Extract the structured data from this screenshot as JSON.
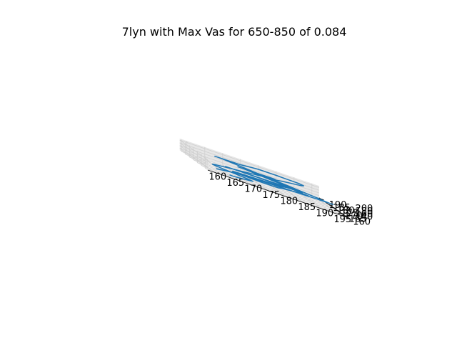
{
  "chart_data": {
    "type": "line",
    "projection": "3d",
    "title": "7lyn with Max Vas for 650-850 of 0.084",
    "xlabel": "",
    "ylabel": "",
    "zlabel": "",
    "xlim": [
      158,
      197
    ],
    "ylim": [
      157,
      192
    ],
    "zlim": [
      125,
      212
    ],
    "x_ticks": [
      160,
      165,
      170,
      175,
      180,
      185,
      190,
      195
    ],
    "y_ticks": [
      160,
      165,
      170,
      175,
      180,
      185,
      190
    ],
    "z_ticks": [
      140,
      160,
      180,
      200
    ],
    "grid": true,
    "series": [
      {
        "color": "#1f77b4",
        "x": [
          161,
          163,
          165,
          167,
          169,
          171,
          172,
          174,
          176,
          177,
          179,
          181,
          182,
          184,
          186,
          188,
          189,
          190,
          191,
          189,
          187,
          185,
          183,
          182,
          183,
          185,
          187,
          189,
          191,
          192,
          191,
          189,
          187,
          185,
          184,
          182,
          180,
          178,
          176,
          174,
          172,
          170,
          168,
          166,
          165,
          164,
          166,
          168,
          170,
          172,
          174,
          176,
          178,
          180,
          182,
          184,
          186,
          188,
          190,
          191,
          193,
          194,
          192,
          190,
          188,
          186,
          184,
          182,
          181,
          179,
          177,
          175,
          173,
          171,
          170,
          169,
          171,
          173,
          175,
          177,
          179,
          181,
          183,
          185,
          186,
          185,
          183,
          181,
          179,
          177,
          175,
          173,
          171,
          169,
          168,
          167,
          169,
          171,
          173,
          175,
          177,
          179,
          181,
          183,
          184,
          185,
          186,
          184,
          182,
          180,
          178,
          176,
          174,
          172,
          171,
          170,
          171,
          172,
          174,
          176,
          178,
          180,
          182,
          181,
          179,
          177,
          175,
          173,
          171,
          169,
          167,
          165,
          163,
          162,
          163,
          165,
          167,
          169,
          171,
          172,
          170,
          168,
          166,
          165
        ],
        "y": [
          160,
          161,
          162,
          163,
          164,
          165,
          166,
          167,
          168,
          169,
          170,
          171,
          172,
          173,
          174,
          175,
          176,
          177,
          178,
          179,
          180,
          181,
          182,
          183,
          184,
          185,
          186,
          187,
          188,
          189,
          190,
          189,
          188,
          187,
          186,
          185,
          184,
          183,
          182,
          181,
          180,
          179,
          178,
          177,
          176,
          175,
          174,
          173,
          172,
          171,
          170,
          169,
          168,
          167,
          166,
          165,
          164,
          163,
          162,
          161,
          160,
          161,
          162,
          163,
          164,
          165,
          166,
          167,
          168,
          169,
          170,
          171,
          172,
          173,
          174,
          175,
          176,
          177,
          178,
          179,
          180,
          181,
          182,
          183,
          184,
          185,
          184,
          183,
          182,
          181,
          180,
          179,
          178,
          177,
          176,
          175,
          174,
          173,
          172,
          171,
          170,
          169,
          168,
          167,
          166,
          165,
          164,
          165,
          166,
          167,
          168,
          169,
          170,
          171,
          172,
          173,
          174,
          175,
          176,
          177,
          178,
          179,
          180,
          179,
          178,
          177,
          176,
          175,
          174,
          173,
          172,
          171,
          170,
          169,
          168,
          167,
          166,
          165,
          164,
          163,
          162,
          161,
          160,
          161
        ],
        "z": [
          150,
          153,
          156,
          160,
          158,
          155,
          152,
          149,
          146,
          144,
          142,
          141,
          143,
          145,
          147,
          146,
          144,
          142,
          141,
          143,
          146,
          150,
          155,
          160,
          164,
          168,
          171,
          174,
          177,
          180,
          183,
          186,
          189,
          192,
          195,
          197,
          199,
          201,
          200,
          198,
          196,
          198,
          200,
          202,
          204,
          206,
          207,
          205,
          203,
          201,
          199,
          197,
          195,
          193,
          191,
          189,
          187,
          185,
          183,
          181,
          179,
          177,
          175,
          172,
          169,
          166,
          163,
          160,
          157,
          154,
          151,
          148,
          146,
          144,
          142,
          140,
          139,
          138,
          137,
          136,
          135,
          134,
          133,
          134,
          135,
          137,
          139,
          141,
          143,
          145,
          147,
          149,
          151,
          153,
          155,
          157,
          159,
          161,
          163,
          165,
          167,
          169,
          171,
          173,
          175,
          177,
          179,
          181,
          183,
          185,
          187,
          189,
          191,
          193,
          192,
          190,
          188,
          186,
          184,
          182,
          180,
          178,
          176,
          174,
          172,
          170,
          168,
          166,
          164,
          162,
          160,
          158,
          156,
          154,
          152,
          150,
          148,
          146,
          144,
          142,
          140,
          138,
          137,
          136
        ]
      }
    ]
  }
}
